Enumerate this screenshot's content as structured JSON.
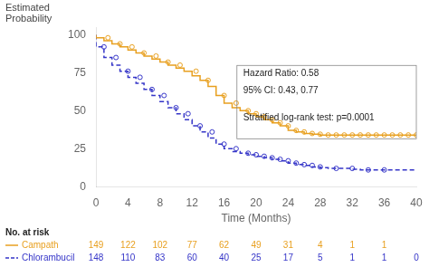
{
  "chart_data": {
    "type": "step",
    "ylabel": "Estimated\nProbability",
    "xlabel": "Time (Months)",
    "x": [
      0,
      1,
      2,
      3,
      4,
      5,
      6,
      7,
      8,
      9,
      10,
      11,
      12,
      13,
      14,
      15,
      16,
      17,
      18,
      19,
      20,
      21,
      22,
      23,
      24,
      25,
      26,
      27,
      28,
      29,
      30,
      31,
      32,
      33,
      34,
      35,
      36,
      37,
      38,
      39,
      40
    ],
    "xlim": [
      0,
      40
    ],
    "xticks": [
      0,
      4,
      8,
      12,
      16,
      20,
      24,
      28,
      32,
      36,
      40
    ],
    "ylim": [
      0,
      105
    ],
    "yticks": [
      0,
      25,
      50,
      75,
      100
    ],
    "grid": false,
    "annotations": [
      "Hazard Ratio: 0.58",
      "95% CI: 0.43, 0.77",
      "Stratified log-rank test: p=0.0001"
    ],
    "at_risk_title": "No. at risk",
    "at_risk_times": [
      0,
      4,
      8,
      12,
      16,
      20,
      24,
      28,
      32,
      36,
      40
    ],
    "series": [
      {
        "name": "Campath",
        "color": "#E8A020",
        "line_style": "solid",
        "marker": "circle",
        "values": [
          100,
          98,
          96,
          94,
          92,
          90,
          88,
          86,
          84,
          82,
          80,
          78,
          76,
          73,
          70,
          66,
          60,
          55,
          52,
          50,
          48,
          46,
          44,
          42,
          40,
          37,
          36,
          35,
          34.5,
          34,
          34,
          34,
          34,
          34,
          34,
          34,
          34,
          34,
          34,
          34,
          34
        ],
        "censor_x": [
          1.5,
          3,
          4.5,
          6,
          7.5,
          9,
          10.5,
          12.5,
          14,
          16,
          17.5,
          19,
          20,
          21,
          22,
          23,
          24,
          25,
          26,
          27,
          28,
          29,
          30,
          31,
          32,
          33,
          34,
          35,
          36,
          37,
          38,
          39,
          40
        ],
        "censor_y": [
          98,
          94,
          92,
          88,
          86,
          82,
          80,
          76,
          70,
          60,
          55,
          50,
          48,
          46,
          44,
          42,
          40,
          37,
          36,
          35,
          34.5,
          34,
          34,
          34,
          34,
          34,
          34,
          34,
          34,
          34,
          34,
          34,
          34
        ],
        "at_risk": [
          149,
          122,
          102,
          77,
          62,
          49,
          31,
          4,
          1,
          1,
          null
        ]
      },
      {
        "name": "Chlorambucil",
        "color": "#3535C8",
        "line_style": "dashed",
        "marker": "circle",
        "values": [
          100,
          92,
          85,
          80,
          76,
          72,
          68,
          64,
          60,
          56,
          52,
          48,
          44,
          40,
          36,
          32,
          28,
          25,
          23,
          22,
          21,
          20,
          19,
          18,
          17,
          15.5,
          14.5,
          14,
          13,
          12.5,
          12,
          12,
          12,
          11.5,
          11,
          11,
          11,
          11,
          11,
          11,
          11
        ],
        "censor_x": [
          1,
          2.5,
          4,
          5.5,
          7,
          8.5,
          10,
          11.5,
          13,
          14.5,
          16,
          17.5,
          19,
          20,
          21,
          22,
          23,
          24,
          25,
          26,
          27,
          28,
          30,
          32,
          34,
          36
        ],
        "censor_y": [
          92,
          85,
          76,
          72,
          64,
          60,
          52,
          48,
          40,
          36,
          28,
          25,
          22,
          21,
          20,
          19,
          18,
          17,
          15.5,
          14.5,
          14,
          13,
          12,
          12,
          11,
          11
        ],
        "at_risk": [
          148,
          110,
          83,
          60,
          40,
          25,
          17,
          5,
          1,
          1,
          0
        ]
      }
    ]
  }
}
